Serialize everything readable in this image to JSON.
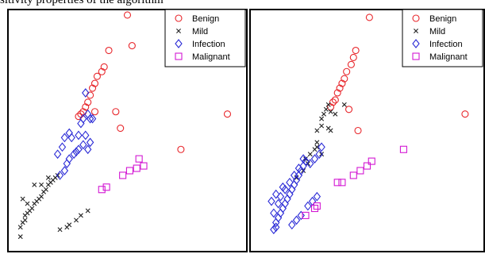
{
  "caption_fragment": "sitivity properties of the algorithm",
  "colors": {
    "benign": "#e8262b",
    "mild": "#222222",
    "infection": "#2b2bd6",
    "malignant": "#d318d3"
  },
  "chart_data": [
    {
      "type": "scatter",
      "title": "",
      "xlabel": "",
      "ylabel": "",
      "xlim": [
        0,
        100
      ],
      "ylim": [
        0,
        100
      ],
      "grid": false,
      "legend": {
        "placement": "top-right"
      },
      "series": [
        {
          "name": "Benign",
          "marker": "circle",
          "color": "#e8262b",
          "points": [
            [
              50,
              99
            ],
            [
              42,
              84
            ],
            [
              52,
              86
            ],
            [
              40,
              77
            ],
            [
              39,
              75
            ],
            [
              37,
              73
            ],
            [
              36,
              70
            ],
            [
              35,
              68
            ],
            [
              34,
              65
            ],
            [
              33,
              62
            ],
            [
              32,
              60
            ],
            [
              31,
              58
            ],
            [
              30,
              57
            ],
            [
              29,
              56
            ],
            [
              36,
              58
            ],
            [
              45,
              58
            ],
            [
              47,
              51
            ],
            [
              73,
              42
            ],
            [
              93,
              57
            ]
          ]
        },
        {
          "name": "Mild",
          "marker": "x",
          "color": "#222222",
          "points": [
            [
              4,
              5
            ],
            [
              4,
              9
            ],
            [
              5,
              11
            ],
            [
              6,
              12
            ],
            [
              6,
              14
            ],
            [
              7,
              15
            ],
            [
              8,
              16
            ],
            [
              9,
              17
            ],
            [
              10,
              19
            ],
            [
              11,
              20
            ],
            [
              12,
              21
            ],
            [
              13,
              22
            ],
            [
              14,
              24
            ],
            [
              15,
              25
            ],
            [
              16,
              27
            ],
            [
              17,
              28
            ],
            [
              18,
              29
            ],
            [
              19,
              30
            ],
            [
              20,
              31
            ],
            [
              10,
              27
            ],
            [
              13,
              27
            ],
            [
              16,
              30
            ],
            [
              21,
              8
            ],
            [
              24,
              9
            ],
            [
              25,
              10
            ],
            [
              28,
              12
            ],
            [
              30,
              14
            ],
            [
              33,
              16
            ],
            [
              7,
              19
            ],
            [
              5,
              21
            ]
          ]
        },
        {
          "name": "Infection",
          "marker": "diamond",
          "color": "#2b2bd6",
          "points": [
            [
              21,
              31
            ],
            [
              23,
              33
            ],
            [
              24,
              36
            ],
            [
              25,
              38
            ],
            [
              27,
              40
            ],
            [
              28,
              41
            ],
            [
              29,
              42
            ],
            [
              31,
              44
            ],
            [
              33,
              42
            ],
            [
              34,
              45
            ],
            [
              20,
              40
            ],
            [
              22,
              43
            ],
            [
              23,
              47
            ],
            [
              25,
              49
            ],
            [
              26,
              47
            ],
            [
              30,
              53
            ],
            [
              31,
              55
            ],
            [
              33,
              57
            ],
            [
              34,
              55
            ],
            [
              35,
              55
            ],
            [
              32,
              66
            ],
            [
              29,
              48
            ],
            [
              32,
              48
            ]
          ]
        },
        {
          "name": "Malignant",
          "marker": "square",
          "color": "#d318d3",
          "points": [
            [
              39,
              25
            ],
            [
              41,
              26
            ],
            [
              48,
              31
            ],
            [
              51,
              33
            ],
            [
              54,
              34
            ],
            [
              57,
              35
            ],
            [
              55,
              38
            ]
          ]
        }
      ]
    },
    {
      "type": "scatter",
      "title": "",
      "xlabel": "",
      "ylabel": "",
      "xlim": [
        0,
        100
      ],
      "ylim": [
        0,
        100
      ],
      "grid": false,
      "legend": {
        "placement": "top-right"
      },
      "series": [
        {
          "name": "Benign",
          "marker": "circle",
          "color": "#e8262b",
          "points": [
            [
              51,
              98
            ],
            [
              45,
              84
            ],
            [
              44,
              81
            ],
            [
              43,
              78
            ],
            [
              41,
              75
            ],
            [
              40,
              72
            ],
            [
              39,
              70
            ],
            [
              38,
              68
            ],
            [
              37,
              66
            ],
            [
              36,
              63
            ],
            [
              35,
              62
            ],
            [
              34,
              60
            ],
            [
              42,
              59
            ],
            [
              46,
              50
            ],
            [
              93,
              57
            ]
          ]
        },
        {
          "name": "Mild",
          "marker": "x",
          "color": "#222222",
          "points": [
            [
              30,
              55
            ],
            [
              31,
              57
            ],
            [
              32,
              59
            ],
            [
              33,
              61
            ],
            [
              34,
              58
            ],
            [
              36,
              57
            ],
            [
              28,
              50
            ],
            [
              30,
              52
            ],
            [
              28,
              43
            ],
            [
              33,
              51
            ],
            [
              34,
              50
            ],
            [
              23,
              38
            ],
            [
              25,
              40
            ],
            [
              27,
              42
            ],
            [
              28,
              45
            ],
            [
              24,
              36
            ],
            [
              30,
              40
            ],
            [
              40,
              61
            ],
            [
              19,
              30
            ],
            [
              22,
              33
            ]
          ]
        },
        {
          "name": "Infection",
          "marker": "diamond",
          "color": "#2b2bd6",
          "points": [
            [
              10,
              11
            ],
            [
              11,
              13
            ],
            [
              12,
              15
            ],
            [
              13,
              17
            ],
            [
              14,
              19
            ],
            [
              15,
              21
            ],
            [
              16,
              23
            ],
            [
              17,
              25
            ],
            [
              18,
              27
            ],
            [
              19,
              29
            ],
            [
              20,
              31
            ],
            [
              21,
              33
            ],
            [
              22,
              35
            ],
            [
              23,
              37
            ],
            [
              9,
              15
            ],
            [
              11,
              19
            ],
            [
              12,
              22
            ],
            [
              14,
              25
            ],
            [
              16,
              28
            ],
            [
              18,
              31
            ],
            [
              20,
              34
            ],
            [
              22,
              38
            ],
            [
              8,
              20
            ],
            [
              10,
              23
            ],
            [
              13,
              26
            ],
            [
              17,
              10
            ],
            [
              19,
              12
            ],
            [
              21,
              14
            ],
            [
              24,
              18
            ],
            [
              26,
              20
            ],
            [
              28,
              22
            ],
            [
              25,
              36
            ],
            [
              27,
              38
            ],
            [
              29,
              40
            ],
            [
              30,
              43
            ],
            [
              9,
              8
            ],
            [
              10,
              9
            ]
          ]
        },
        {
          "name": "Malignant",
          "marker": "square",
          "color": "#d318d3",
          "points": [
            [
              23,
              14
            ],
            [
              27,
              17
            ],
            [
              28,
              18
            ],
            [
              37,
              28
            ],
            [
              39,
              28
            ],
            [
              44,
              31
            ],
            [
              47,
              33
            ],
            [
              50,
              35
            ],
            [
              52,
              37
            ],
            [
              66,
              42
            ]
          ]
        }
      ]
    }
  ]
}
